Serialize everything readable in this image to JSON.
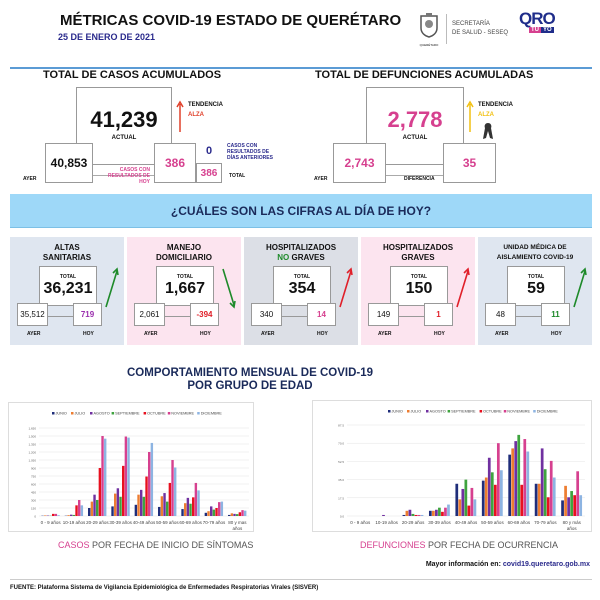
{
  "header": {
    "title": "MÉTRICAS COVID-19 ESTADO DE QUERÉTARO",
    "date": "25 DE ENERO DE 2021",
    "seal_caption": "QUERÉTARO",
    "secretaria_line1": "SECRETARÍA",
    "secretaria_line2": "DE SALUD - SESEQ",
    "logo_top": "QRO",
    "logo_bottom_1": "TÚ",
    "logo_bottom_2": "YO"
  },
  "cases": {
    "title": "TOTAL DE CASOS ACUMULADOS",
    "actual": "41,239",
    "actual_label": "ACTUAL",
    "trend_label": "TENDENCIA",
    "trend_value": "ALZA",
    "yesterday_label": "AYER",
    "yesterday": "40,853",
    "today_label": "CASOS CON RESULTADOS DE HOY",
    "today": "386",
    "previous": "0",
    "previous_label": "CASOS CON RESULTADOS DE DÍAS ANTERIORES",
    "total": "386",
    "total_label": "TOTAL"
  },
  "deaths": {
    "title": "TOTAL DE DEFUNCIONES ACUMULADAS",
    "actual": "2,778",
    "actual_label": "ACTUAL",
    "trend_label": "TENDENCIA",
    "trend_value": "ALZA",
    "yesterday_label": "AYER",
    "yesterday": "2,743",
    "difference_label": "DIFERENCIA",
    "difference": "35"
  },
  "banner": "¿CUÁLES SON LAS CIFRAS AL DÍA DE HOY?",
  "panels": [
    {
      "title1": "ALTAS",
      "title2": "SANITARIAS",
      "total_label": "TOTAL",
      "total": "36,231",
      "ayer": "35,512",
      "hoy": "719",
      "ayer_label": "AYER",
      "hoy_label": "HOY",
      "trend": "up",
      "arrow_color": "#1e8a2a",
      "hoy_color": "#9b2fae",
      "bg": "#dfe6f0"
    },
    {
      "title1": "MANEJO",
      "title2": "DOMICILIARIO",
      "total_label": "TOTAL",
      "total": "1,667",
      "ayer": "2,061",
      "hoy": "-394",
      "ayer_label": "AYER",
      "hoy_label": "HOY",
      "trend": "down",
      "arrow_color": "#1e8a2a",
      "hoy_color": "#e0202a",
      "bg": "#fce4ef"
    },
    {
      "title1": "HOSPITALIZADOS",
      "title2_accent": "NO",
      "title2": " GRAVES",
      "total_label": "TOTAL",
      "total": "354",
      "ayer": "340",
      "hoy": "14",
      "ayer_label": "AYER",
      "hoy_label": "HOY",
      "trend": "up",
      "arrow_color": "#e0202a",
      "hoy_color": "#d6408f",
      "bg": "#dcdfe6"
    },
    {
      "title1": "HOSPITALIZADOS",
      "title2": "GRAVES",
      "total_label": "TOTAL",
      "total": "150",
      "ayer": "149",
      "hoy": "1",
      "ayer_label": "AYER",
      "hoy_label": "HOY",
      "trend": "up",
      "arrow_color": "#e0202a",
      "hoy_color": "#e0202a",
      "bg": "#fce4ef"
    },
    {
      "title1": "UNIDAD MÉDICA DE",
      "title2": "AISLAMIENTO COVID-19",
      "total_label": "TOTAL",
      "total": "59",
      "ayer": "48",
      "hoy": "11",
      "ayer_label": "AYER",
      "hoy_label": "HOY",
      "trend": "up",
      "arrow_color": "#1e8a2a",
      "hoy_color": "#1e8a2a",
      "bg": "#dfe6f0"
    }
  ],
  "section_title_1": "COMPORTAMIENTO MENSUAL DE COVID-19",
  "section_title_2": "POR GRUPO DE EDAD",
  "chart_data": [
    {
      "type": "bar",
      "title": "",
      "xlabel": "",
      "ylabel": "",
      "ylim": [
        0,
        1650
      ],
      "yticks": [
        "0",
        "150",
        "300",
        "450",
        "600",
        "750",
        "900",
        "1,050",
        "1,200",
        "1,350",
        "1,500",
        "1,650"
      ],
      "grid": true,
      "legend": "top-right",
      "categories": [
        "0 - 9 años",
        "10-19 años",
        "20-29 años",
        "30-39 años",
        "40-49 años",
        "50-59 años",
        "60-69 años",
        "70-79 años",
        "80 y mas años"
      ],
      "series": [
        {
          "name": "JUNIO",
          "color": "#1f2d7a",
          "values": [
            5,
            5,
            150,
            180,
            210,
            170,
            130,
            60,
            20
          ]
        },
        {
          "name": "JULIO",
          "color": "#ed7d31",
          "values": [
            10,
            15,
            270,
            420,
            400,
            370,
            240,
            90,
            50
          ]
        },
        {
          "name": "AGOSTO",
          "color": "#7030a0",
          "values": [
            8,
            25,
            400,
            520,
            490,
            430,
            340,
            180,
            40
          ]
        },
        {
          "name": "SEPTIEMBRE",
          "color": "#3fa33f",
          "values": [
            5,
            20,
            300,
            360,
            360,
            270,
            230,
            120,
            35
          ]
        },
        {
          "name": "OCTUBRE",
          "color": "#e8101f",
          "values": [
            40,
            200,
            900,
            940,
            740,
            620,
            350,
            150,
            70
          ]
        },
        {
          "name": "NOVIEMBRE",
          "color": "#d6408f",
          "values": [
            40,
            300,
            1500,
            1490,
            1200,
            1050,
            620,
            260,
            110
          ]
        },
        {
          "name": "DICIEMBRE",
          "color": "#8db4e2",
          "values": [
            15,
            200,
            1450,
            1470,
            1370,
            910,
            480,
            270,
            100
          ]
        }
      ],
      "caption_accent": "CASOS",
      "caption": " POR FECHA DE INICIO DE SÍNTOMAS"
    },
    {
      "type": "bar",
      "title": "",
      "xlabel": "",
      "ylabel": "",
      "ylim": [
        0,
        87.5
      ],
      "yticks": [
        "0.0",
        "17.5",
        "35.0",
        "52.5",
        "70.0",
        "87.5"
      ],
      "grid": true,
      "legend": "top-right",
      "categories": [
        "0 - 9 años",
        "10-19 años",
        "20-29 años",
        "30-39 años",
        "40-49 años",
        "50-59 años",
        "60-69 años",
        "70-79 años",
        "80 y más años"
      ],
      "series": [
        {
          "name": "JUNIO",
          "color": "#1f2d7a",
          "values": [
            0,
            0,
            1,
            5,
            31,
            34,
            59,
            31,
            15
          ]
        },
        {
          "name": "JULIO",
          "color": "#ed7d31",
          "values": [
            0,
            0,
            5,
            5,
            16,
            37,
            65,
            31,
            29
          ]
        },
        {
          "name": "AGOSTO",
          "color": "#7030a0",
          "values": [
            0,
            1,
            6,
            6,
            26,
            56,
            72,
            65,
            18
          ]
        },
        {
          "name": "SEPTIEMBRE",
          "color": "#3fa33f",
          "values": [
            0,
            0,
            2,
            8,
            35,
            42,
            78,
            45,
            24
          ]
        },
        {
          "name": "OCTUBRE",
          "color": "#e8101f",
          "values": [
            0,
            0,
            1,
            4,
            10,
            30,
            30,
            18,
            20
          ]
        },
        {
          "name": "NOVIEMBRE",
          "color": "#d6408f",
          "values": [
            0,
            0,
            1,
            8,
            27,
            70,
            74,
            53,
            43
          ]
        },
        {
          "name": "DICIEMBRE",
          "color": "#8db4e2",
          "values": [
            0,
            0,
            1,
            11,
            16,
            44,
            62,
            37,
            20
          ]
        }
      ],
      "caption_accent": "DEFUNCIONES",
      "caption": " POR FECHA DE OCURRENCIA"
    }
  ],
  "footer": {
    "more_info_label": "Mayor información en:",
    "more_info_link": "covid19.queretaro.gob.mx",
    "source_label": "FUENTE:",
    "source": "Plataforma Sistema  de Vigilancia Epidemiológica de Enfermedades Respiratorias Virales (SISVER)"
  }
}
